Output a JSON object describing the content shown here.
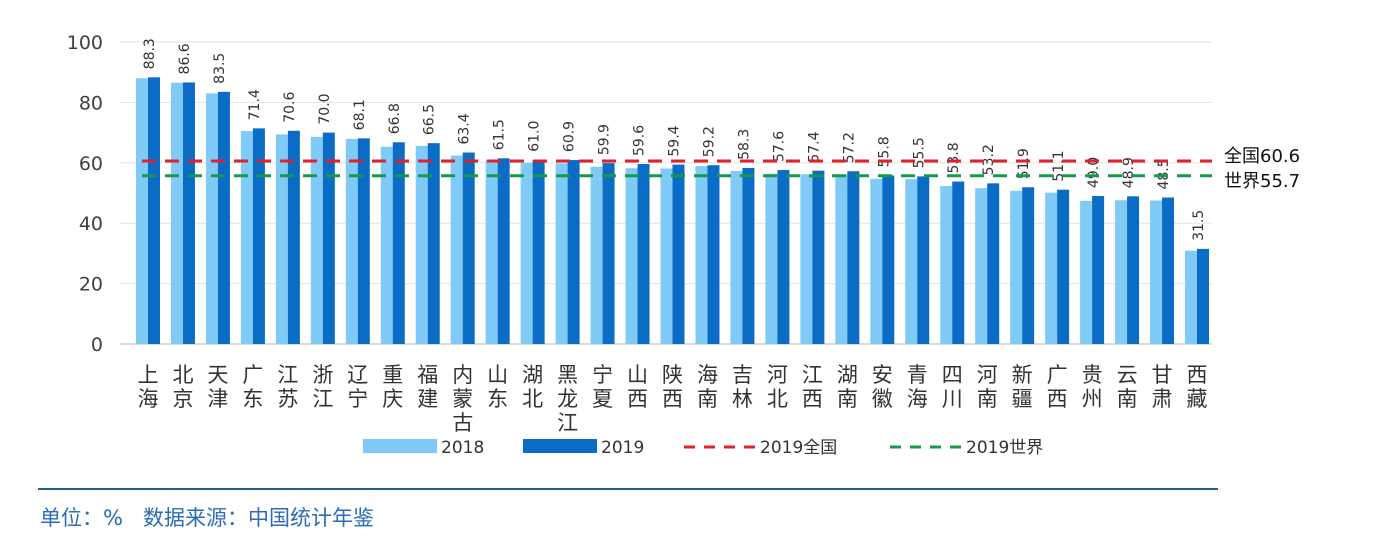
{
  "chart_data": {
    "type": "bar",
    "categories": [
      "上海",
      "北京",
      "天津",
      "广东",
      "江苏",
      "浙江",
      "辽宁",
      "重庆",
      "福建",
      "内蒙古",
      "山东",
      "湖北",
      "黑龙江",
      "宁夏",
      "山西",
      "陕西",
      "海南",
      "吉林",
      "河北",
      "江西",
      "湖南",
      "安徽",
      "青海",
      "四川",
      "河南",
      "新疆",
      "广西",
      "贵州",
      "云南",
      "甘肃",
      "西藏"
    ],
    "series": [
      {
        "name": "2018",
        "color": "#7fcaf7",
        "values": [
          88.0,
          86.5,
          83.0,
          70.5,
          69.4,
          68.6,
          67.9,
          65.3,
          65.6,
          62.4,
          60.9,
          60.0,
          59.8,
          58.7,
          58.2,
          58.1,
          58.9,
          57.3,
          56.4,
          56.2,
          56.2,
          54.7,
          54.6,
          52.3,
          51.6,
          50.7,
          50.1,
          47.4,
          47.6,
          47.5,
          30.9
        ]
      },
      {
        "name": "2019",
        "color": "#0a6cc4",
        "values": [
          88.3,
          86.6,
          83.5,
          71.4,
          70.6,
          70.0,
          68.1,
          66.8,
          66.5,
          63.4,
          61.5,
          61.0,
          60.9,
          59.9,
          59.6,
          59.4,
          59.2,
          58.3,
          57.6,
          57.4,
          57.2,
          55.8,
          55.5,
          53.8,
          53.2,
          51.9,
          51.1,
          49.0,
          48.9,
          48.5,
          31.5
        ]
      }
    ],
    "data_labels": [
      "88.3",
      "86.6",
      "83.5",
      "71.4",
      "70.6",
      "70.0",
      "68.1",
      "66.8",
      "66.5",
      "63.4",
      "61.5",
      "61.0",
      "60.9",
      "59.9",
      "59.6",
      "59.4",
      "59.2",
      "58.3",
      "57.6",
      "57.4",
      "57.2",
      "55.8",
      "55.5",
      "53.8",
      "53.2",
      "51.9",
      "51.1",
      "49.0",
      "48.9",
      "48.5",
      "31.5"
    ],
    "reference_lines": [
      {
        "name": "2019全国",
        "value": 60.6,
        "label": "全国60.6",
        "color": "#e0202a",
        "style": "dashed"
      },
      {
        "name": "2019世界",
        "value": 55.7,
        "label": "世界55.7",
        "color": "#149a4a",
        "style": "dashed"
      }
    ],
    "ylim": [
      0,
      100
    ],
    "yticks": [
      0,
      20,
      40,
      60,
      80,
      100
    ],
    "grid": true,
    "legend_placement": "bottom",
    "title": "",
    "xlabel": "",
    "ylabel": ""
  },
  "footer": {
    "text": "单位：%   数据来源：中国统计年鉴",
    "color": "#2b6cb5"
  }
}
